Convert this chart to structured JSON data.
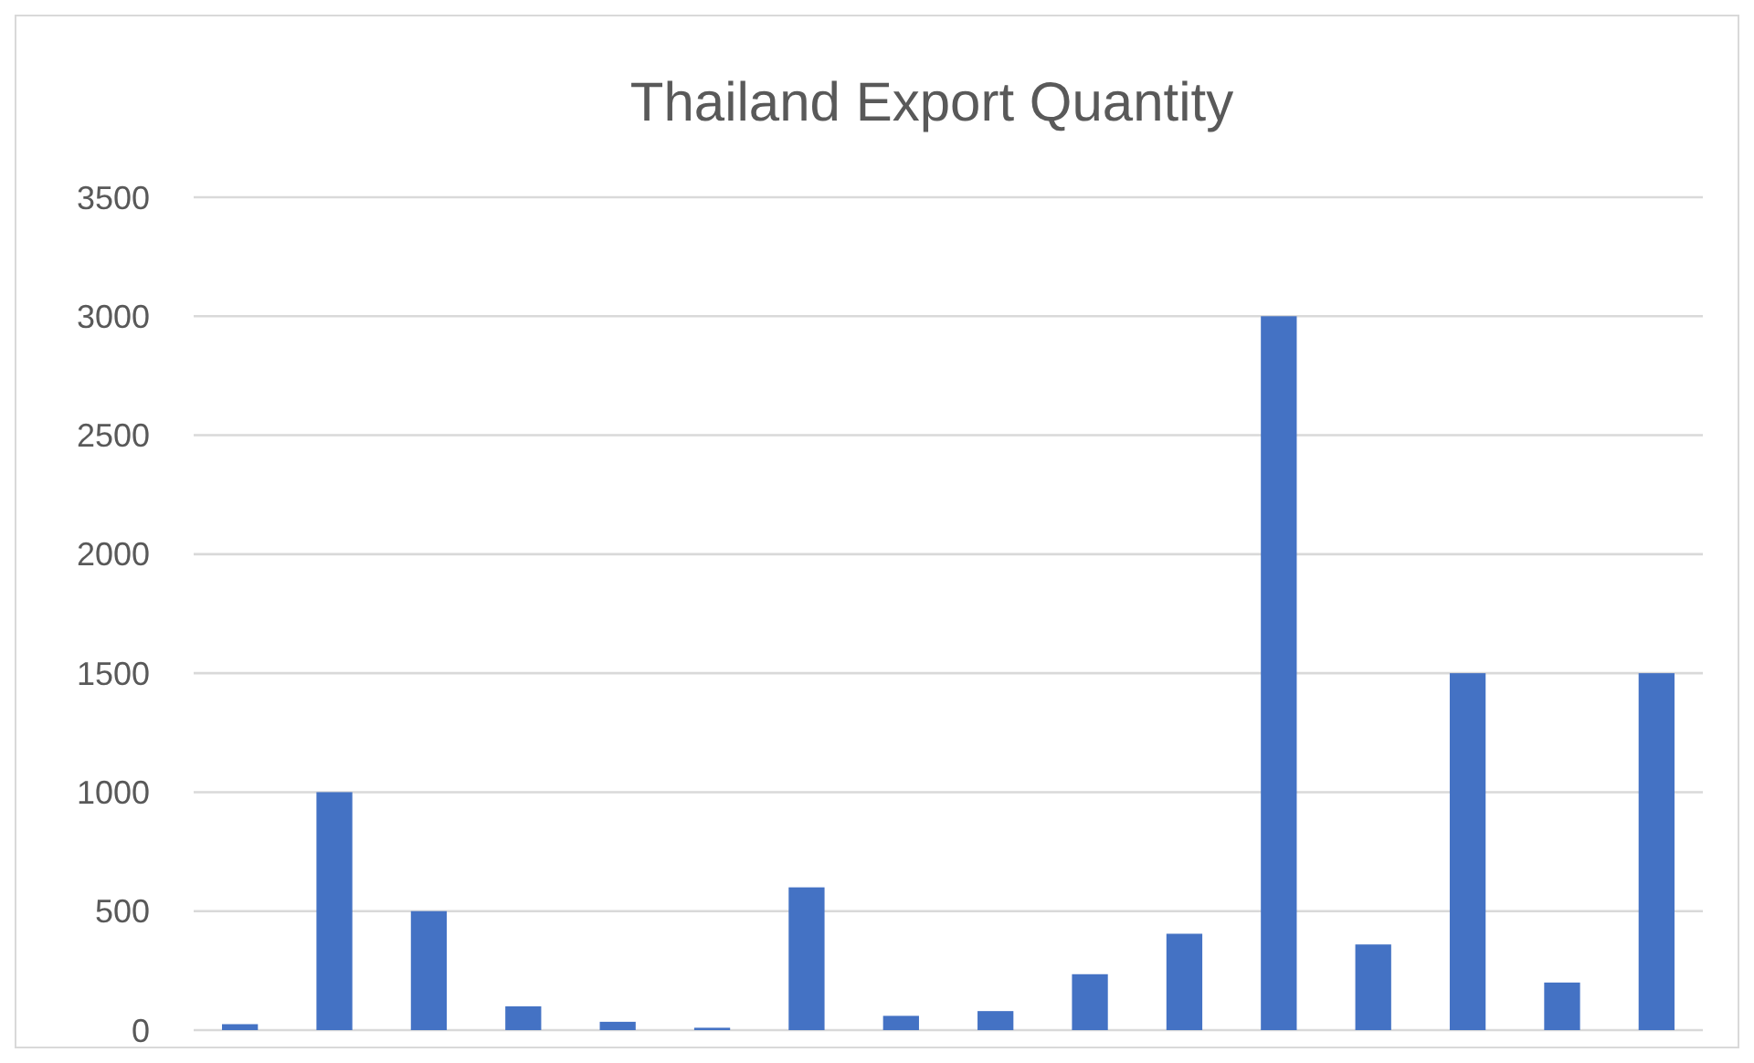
{
  "chart_data": {
    "type": "bar",
    "title": "Thailand Export Quantity",
    "categories": [
      null,
      null,
      null,
      null,
      null,
      null,
      null,
      null,
      null,
      null,
      null,
      null,
      null,
      null,
      null,
      null
    ],
    "values": [
      25,
      1000,
      500,
      100,
      35,
      10,
      600,
      60,
      80,
      235,
      405,
      3000,
      360,
      1500,
      200,
      1500
    ],
    "color": "#4472c4",
    "ylim": [
      0,
      3500
    ],
    "yticks": [
      0,
      500,
      1000,
      1500,
      2000,
      2500,
      3000,
      3500
    ],
    "grid": "y"
  }
}
